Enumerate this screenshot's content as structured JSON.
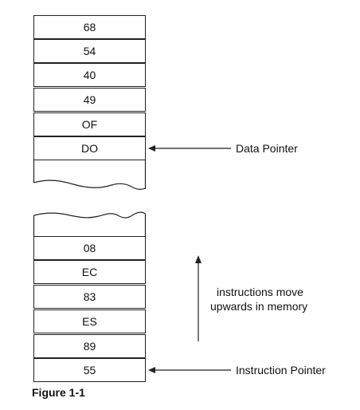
{
  "top_stack": {
    "cells": [
      "68",
      "54",
      "40",
      "49",
      "OF",
      "DO",
      ""
    ]
  },
  "bottom_stack": {
    "cells": [
      "",
      "08",
      "EC",
      "83",
      "ES",
      "89",
      "55"
    ]
  },
  "annotations": {
    "data_pointer": "Data Pointer",
    "instruction_pointer": "Instruction Pointer",
    "instructions_note_line1": "instructions move",
    "instructions_note_line2": "upwards in memory"
  },
  "caption": "Figure 1-1"
}
